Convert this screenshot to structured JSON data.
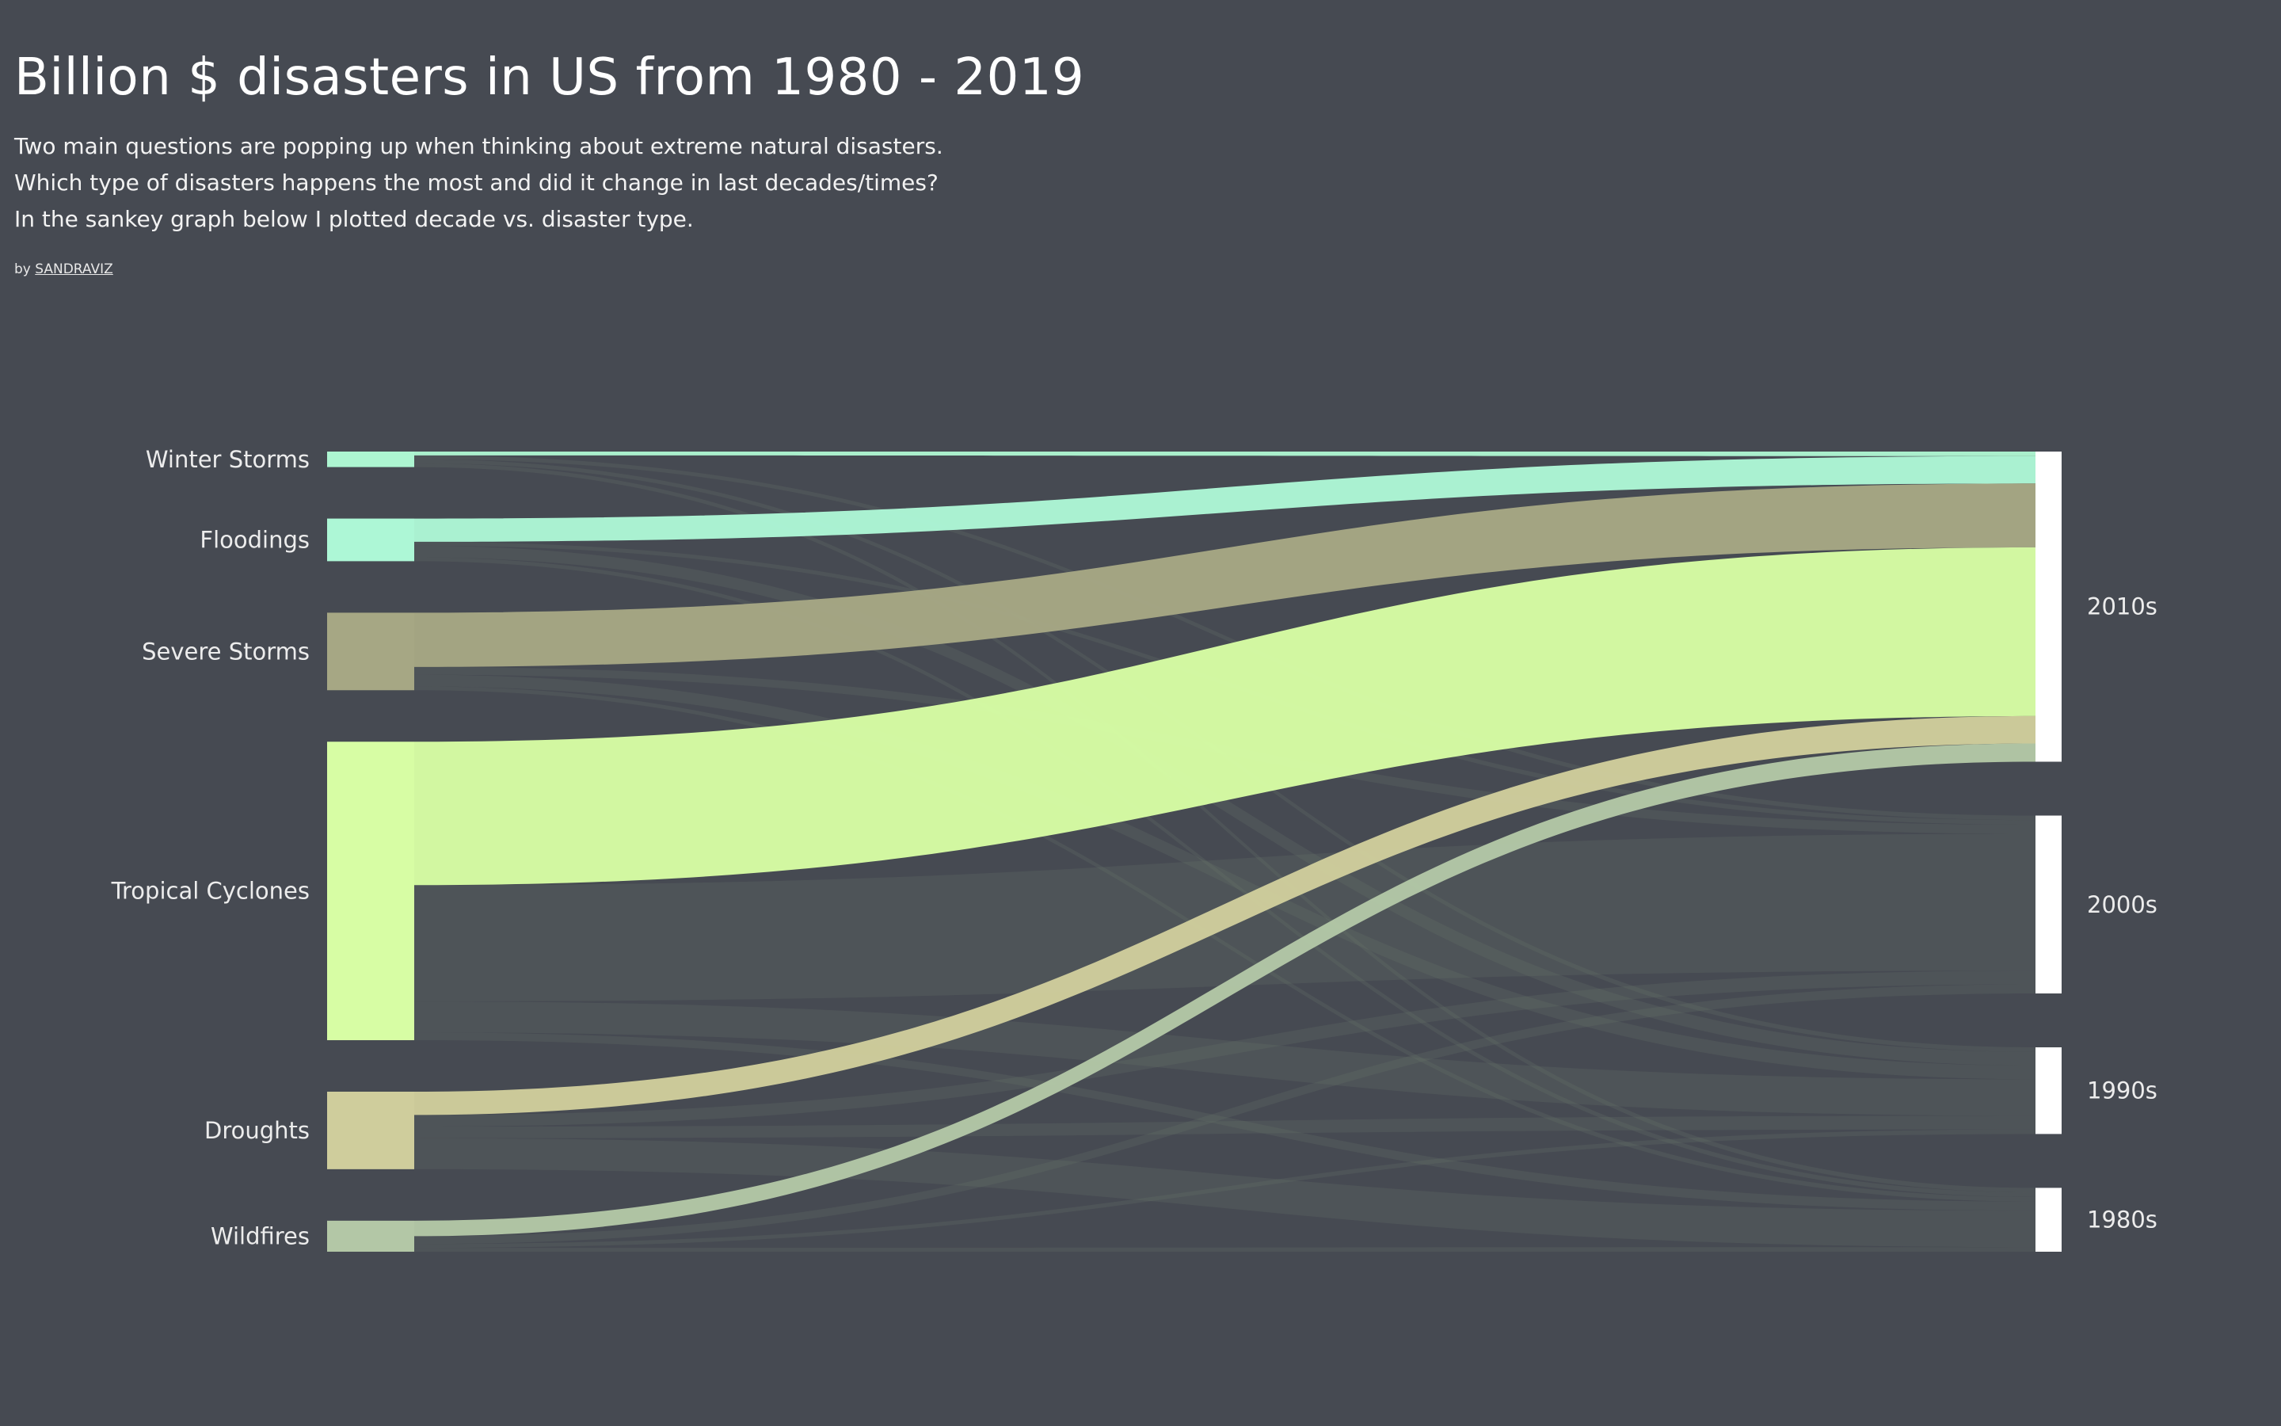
{
  "header": {
    "title": "Billion $ disasters in US from 1980 - 2019",
    "description": [
      "Two main questions are popping up when thinking about extreme natural disasters.",
      "Which type of disasters happens the most and did it change in last decades/times?",
      "In the sankey graph below I plotted decade vs. disaster type."
    ],
    "by_prefix": "by",
    "author": "SANDRAVIZ"
  },
  "chart_data": {
    "type": "sankey",
    "title": "Billion $ disasters in US from 1980 - 2019",
    "sources": [
      {
        "name": "Winter Storms",
        "color": "#adf5d1"
      },
      {
        "name": "Floodings",
        "color": "#adf7d6"
      },
      {
        "name": "Severe Storms",
        "color": "#a6a784"
      },
      {
        "name": "Tropical Cyclones",
        "color": "#d7fda4"
      },
      {
        "name": "Droughts",
        "color": "#cfcd9c"
      },
      {
        "name": "Wildfires",
        "color": "#b3c7a6"
      }
    ],
    "targets": [
      "2010s",
      "2000s",
      "1990s",
      "1980s"
    ],
    "highlight_target": "2010s",
    "links": [
      {
        "source": "Winter Storms",
        "target": "2010s",
        "value": 1
      },
      {
        "source": "Winter Storms",
        "target": "2000s",
        "value": 1
      },
      {
        "source": "Winter Storms",
        "target": "1990s",
        "value": 1
      },
      {
        "source": "Winter Storms",
        "target": "1980s",
        "value": 1
      },
      {
        "source": "Floodings",
        "target": "2010s",
        "value": 6
      },
      {
        "source": "Floodings",
        "target": "2000s",
        "value": 1
      },
      {
        "source": "Floodings",
        "target": "1990s",
        "value": 3
      },
      {
        "source": "Floodings",
        "target": "1980s",
        "value": 1
      },
      {
        "source": "Severe Storms",
        "target": "2010s",
        "value": 14
      },
      {
        "source": "Severe Storms",
        "target": "2000s",
        "value": 2
      },
      {
        "source": "Severe Storms",
        "target": "1990s",
        "value": 3
      },
      {
        "source": "Severe Storms",
        "target": "1980s",
        "value": 1
      },
      {
        "source": "Tropical Cyclones",
        "target": "2010s",
        "value": 37
      },
      {
        "source": "Tropical Cyclones",
        "target": "2000s",
        "value": 30
      },
      {
        "source": "Tropical Cyclones",
        "target": "1990s",
        "value": 8
      },
      {
        "source": "Tropical Cyclones",
        "target": "1980s",
        "value": 2
      },
      {
        "source": "Droughts",
        "target": "2010s",
        "value": 6
      },
      {
        "source": "Droughts",
        "target": "2000s",
        "value": 3
      },
      {
        "source": "Droughts",
        "target": "1990s",
        "value": 3
      },
      {
        "source": "Droughts",
        "target": "1980s",
        "value": 8
      },
      {
        "source": "Wildfires",
        "target": "2010s",
        "value": 4
      },
      {
        "source": "Wildfires",
        "target": "2000s",
        "value": 2
      },
      {
        "source": "Wildfires",
        "target": "1990s",
        "value": 1
      },
      {
        "source": "Wildfires",
        "target": "1980s",
        "value": 1
      }
    ]
  }
}
